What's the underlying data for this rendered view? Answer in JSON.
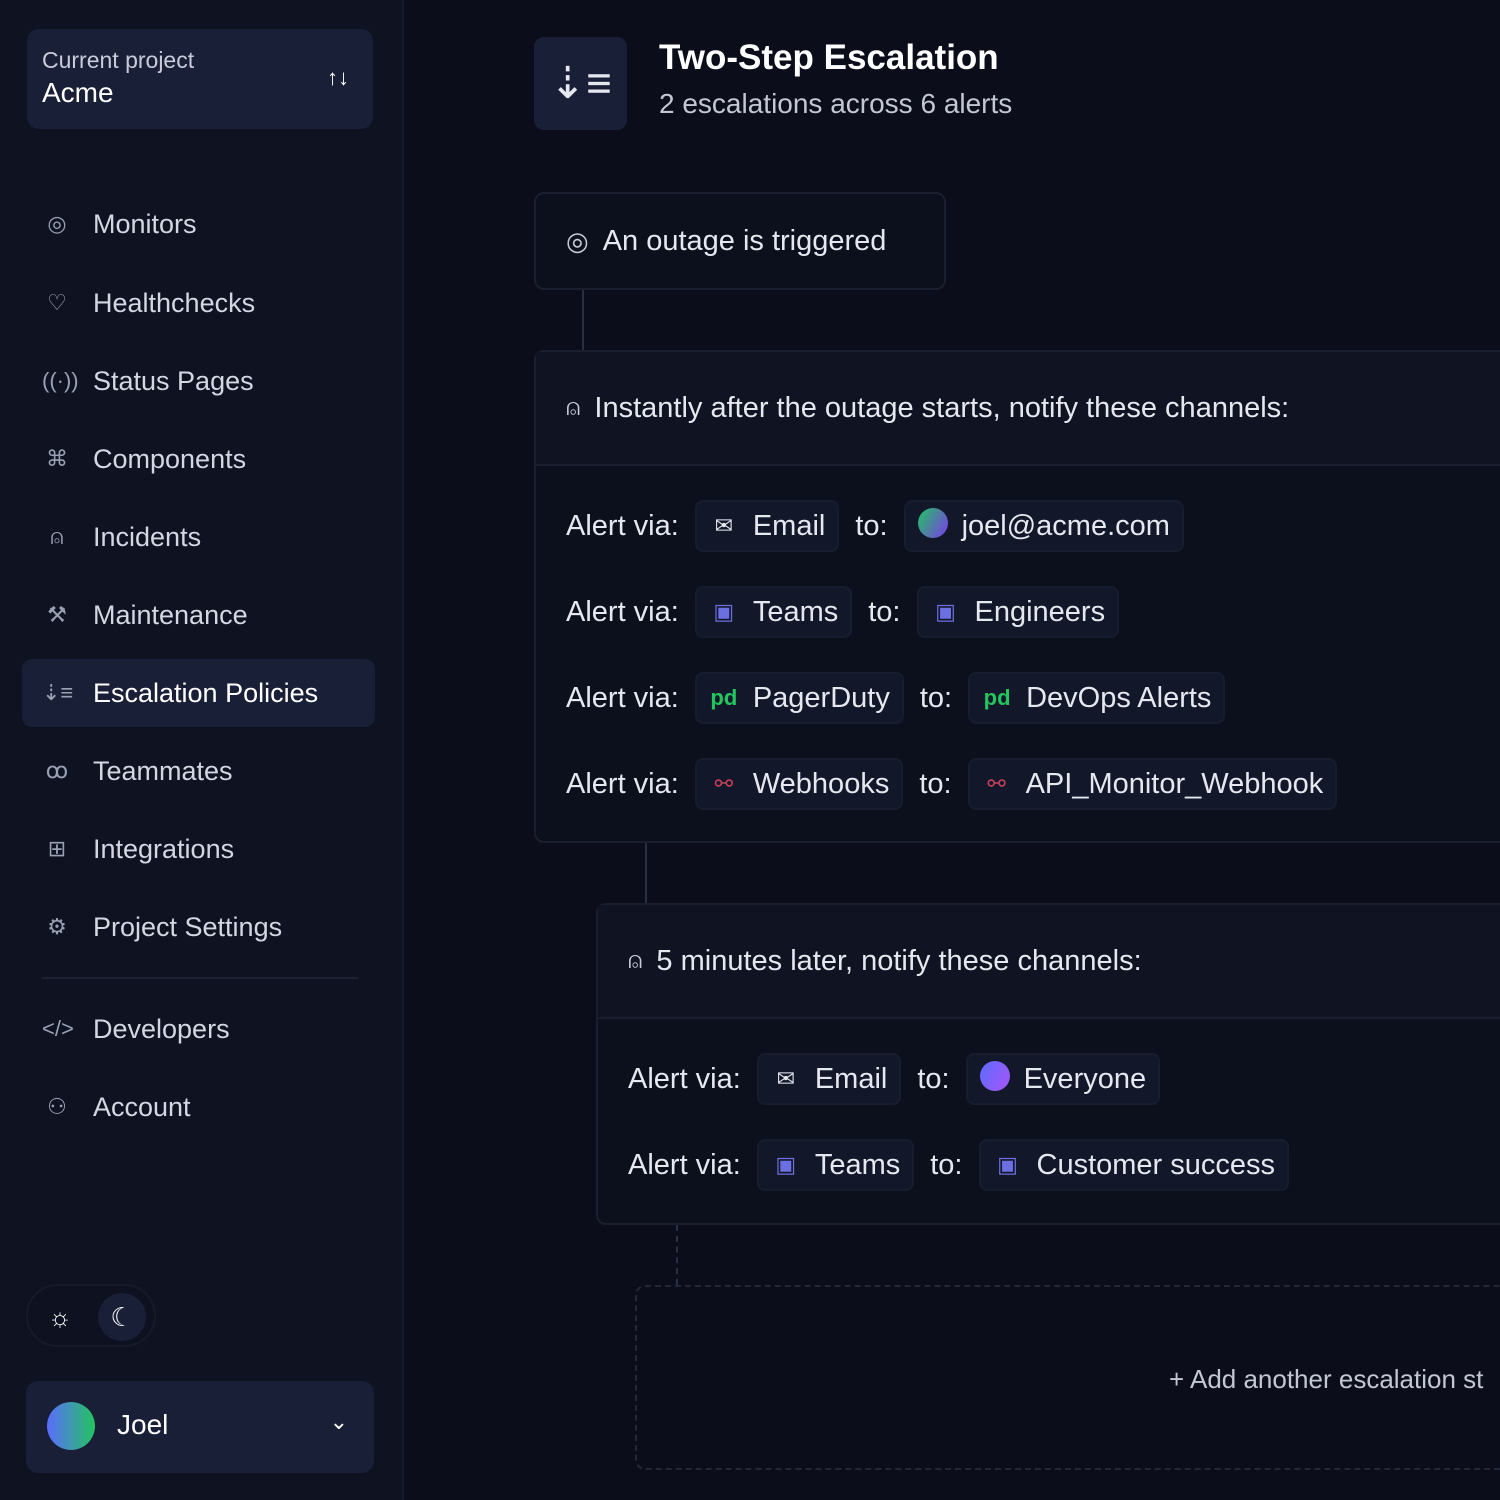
{
  "project": {
    "label": "Current project",
    "name": "Acme"
  },
  "nav": [
    {
      "label": "Monitors",
      "icon": "globe-icon"
    },
    {
      "label": "Healthchecks",
      "icon": "heart-pulse-icon"
    },
    {
      "label": "Status Pages",
      "icon": "broadcast-icon"
    },
    {
      "label": "Components",
      "icon": "puzzle-icon"
    },
    {
      "label": "Incidents",
      "icon": "siren-icon"
    },
    {
      "label": "Maintenance",
      "icon": "wrench-icon"
    },
    {
      "label": "Escalation Policies",
      "icon": "escalation-icon",
      "active": true
    },
    {
      "label": "Teammates",
      "icon": "users-icon"
    },
    {
      "label": "Integrations",
      "icon": "integrations-icon"
    },
    {
      "label": "Project Settings",
      "icon": "gear-icon"
    }
  ],
  "nav2": [
    {
      "label": "Developers",
      "icon": "code-icon"
    },
    {
      "label": "Account",
      "icon": "user-icon"
    }
  ],
  "user": {
    "name": "Joel"
  },
  "header": {
    "title": "Two-Step Escalation",
    "subtitle": "2 escalations across 6 alerts"
  },
  "trigger": "An outage is triggered",
  "steps": [
    {
      "heading": "Instantly after the outage starts, notify these channels:",
      "rows": [
        {
          "via": "Email",
          "to": "joel@acme.com"
        },
        {
          "via": "Teams",
          "to": "Engineers"
        },
        {
          "via": "PagerDuty",
          "to": "DevOps Alerts"
        },
        {
          "via": "Webhooks",
          "to": "API_Monitor_Webhook"
        }
      ]
    },
    {
      "heading": "5 minutes later, notify these channels:",
      "rows": [
        {
          "via": "Email",
          "to": "Everyone"
        },
        {
          "via": "Teams",
          "to": "Customer success"
        }
      ]
    }
  ],
  "labels": {
    "alert_via": "Alert via:",
    "to": "to:"
  },
  "add_step": "+ Add another escalation st",
  "colors": {
    "pagerduty": "#22c55e",
    "teams": "#6b6fe0",
    "webhook": "#c0405a",
    "accent_panel": "#1a1f38"
  }
}
